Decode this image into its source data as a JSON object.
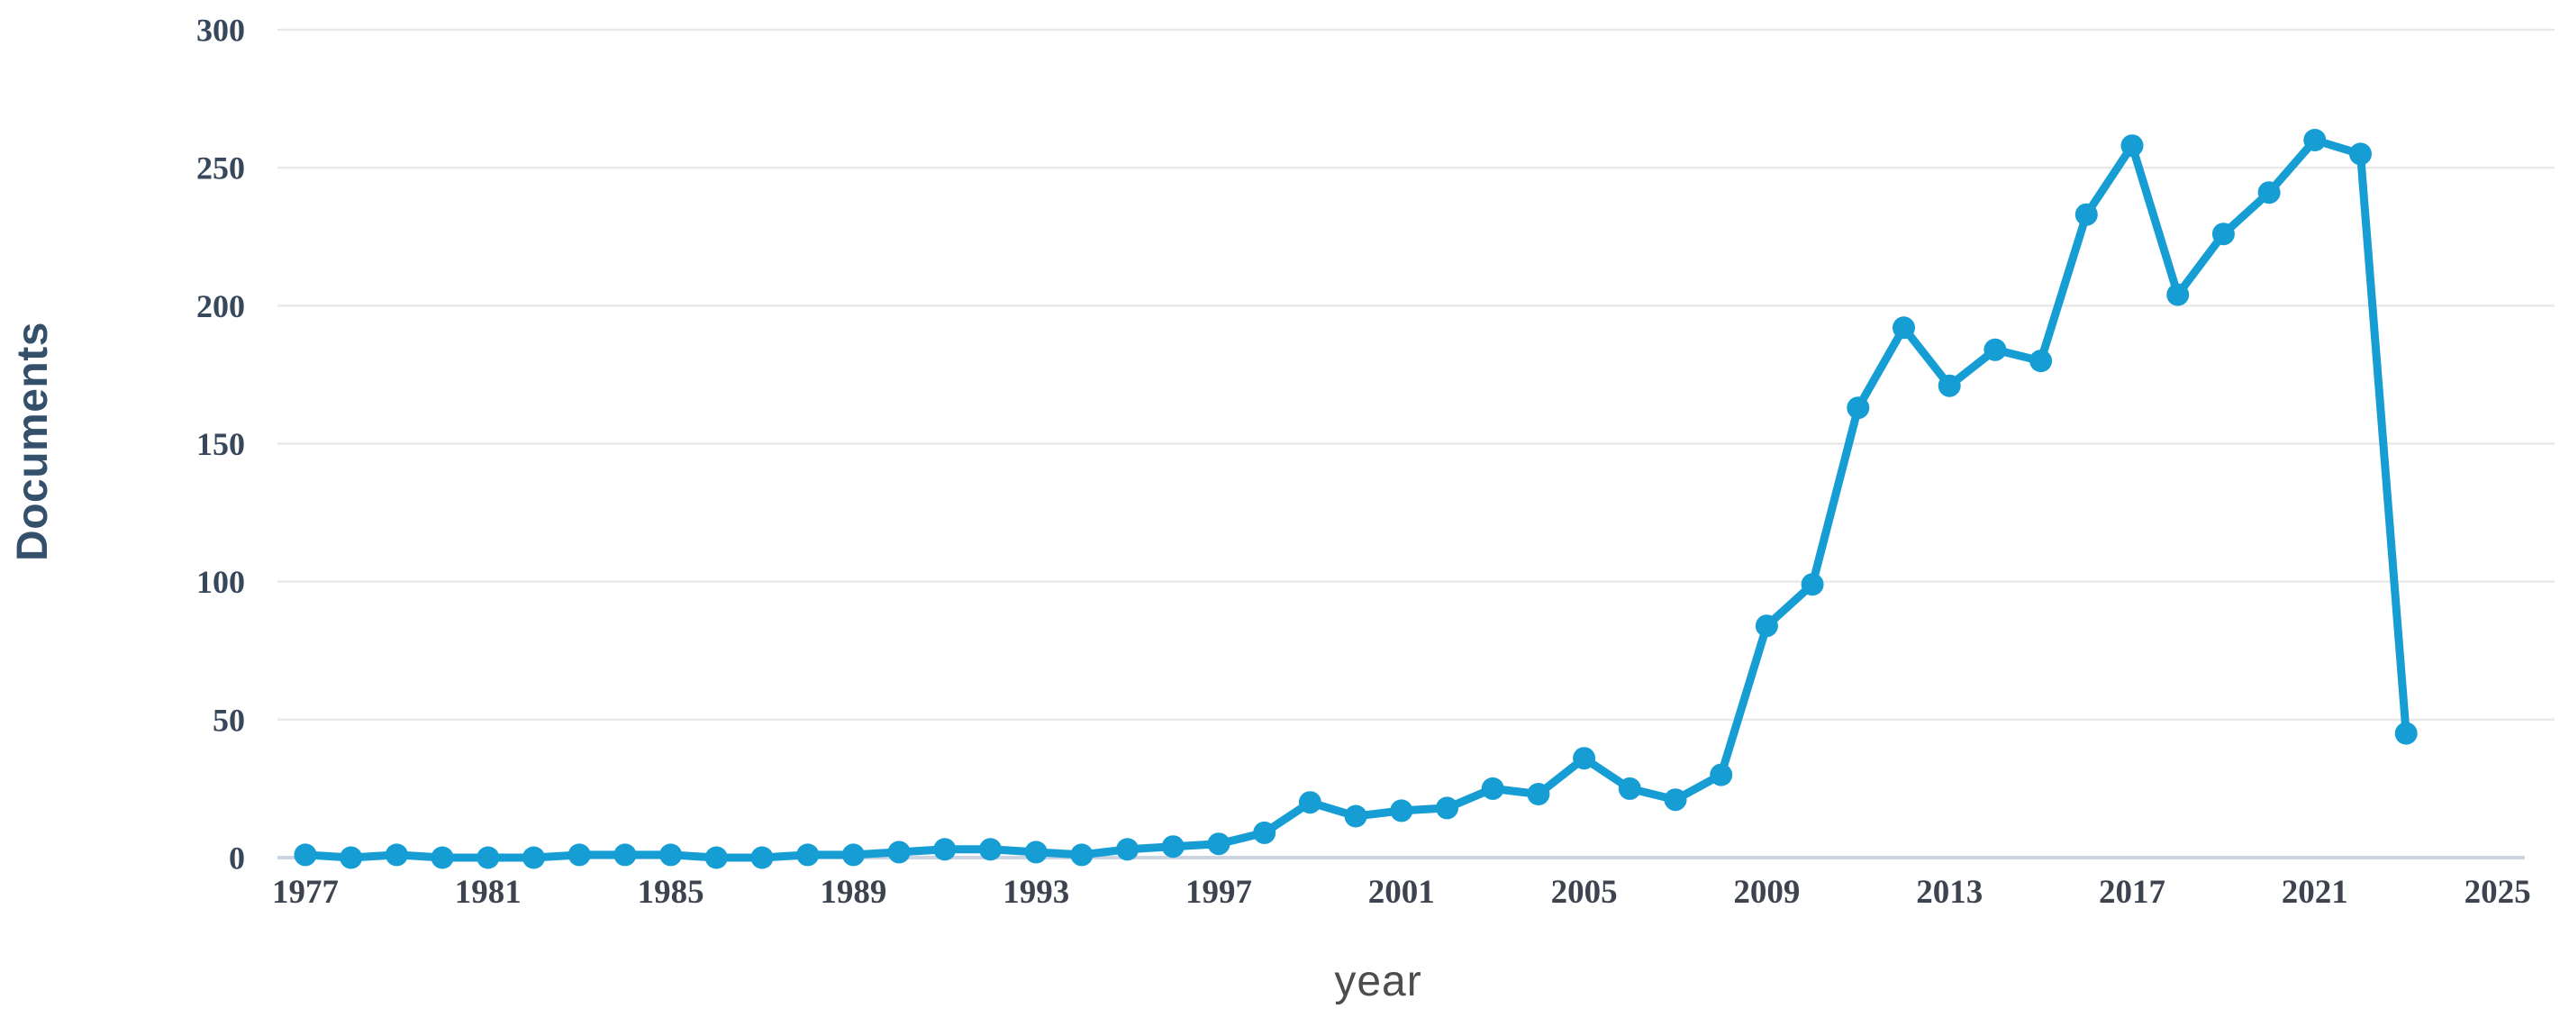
{
  "page": {
    "background": "#ffffff"
  },
  "chart_data": {
    "type": "line",
    "title": "",
    "xlabel": "year",
    "ylabel": "Documents",
    "series_name": "Documents",
    "x": [
      1977,
      1978,
      1979,
      1980,
      1981,
      1982,
      1983,
      1984,
      1985,
      1986,
      1987,
      1988,
      1989,
      1990,
      1991,
      1992,
      1993,
      1994,
      1995,
      1996,
      1997,
      1998,
      1999,
      2000,
      2001,
      2002,
      2003,
      2004,
      2005,
      2006,
      2007,
      2008,
      2009,
      2010,
      2011,
      2012,
      2013,
      2014,
      2015,
      2016,
      2017,
      2018,
      2019,
      2020,
      2021,
      2022,
      2023
    ],
    "values": [
      1,
      0,
      1,
      0,
      0,
      0,
      1,
      1,
      1,
      0,
      0,
      1,
      1,
      2,
      3,
      3,
      2,
      1,
      3,
      4,
      5,
      9,
      20,
      15,
      17,
      18,
      25,
      23,
      36,
      25,
      21,
      30,
      84,
      99,
      163,
      192,
      171,
      184,
      180,
      233,
      258,
      204,
      226,
      241,
      260,
      255,
      45
    ],
    "x_tick_labels": [
      "1977",
      "1981",
      "1985",
      "1989",
      "1993",
      "1997",
      "2001",
      "2005",
      "2009",
      "2013",
      "2017",
      "2021",
      "2025"
    ],
    "x_tick_values": [
      1977,
      1981,
      1985,
      1989,
      1993,
      1997,
      2001,
      2005,
      2009,
      2013,
      2017,
      2021,
      2025
    ],
    "y_tick_labels": [
      "0",
      "50",
      "100",
      "150",
      "200",
      "250",
      "300"
    ],
    "y_tick_values": [
      0,
      50,
      100,
      150,
      200,
      250,
      300
    ],
    "xlim": [
      1977,
      2025
    ],
    "ylim": [
      0,
      300
    ],
    "grid": "horizontal-only",
    "legend_position": "none",
    "marker": "circle",
    "colors": {
      "line": "#159dd4",
      "marker": "#159dd4",
      "gridline": "#e9e9e9",
      "axis_line": "#ccd4e2",
      "y_tick_text": "#37475c",
      "x_tick_text": "#3e4350",
      "ylabel_text": "#35506b",
      "xlabel_text": "#4d4d4d"
    }
  }
}
